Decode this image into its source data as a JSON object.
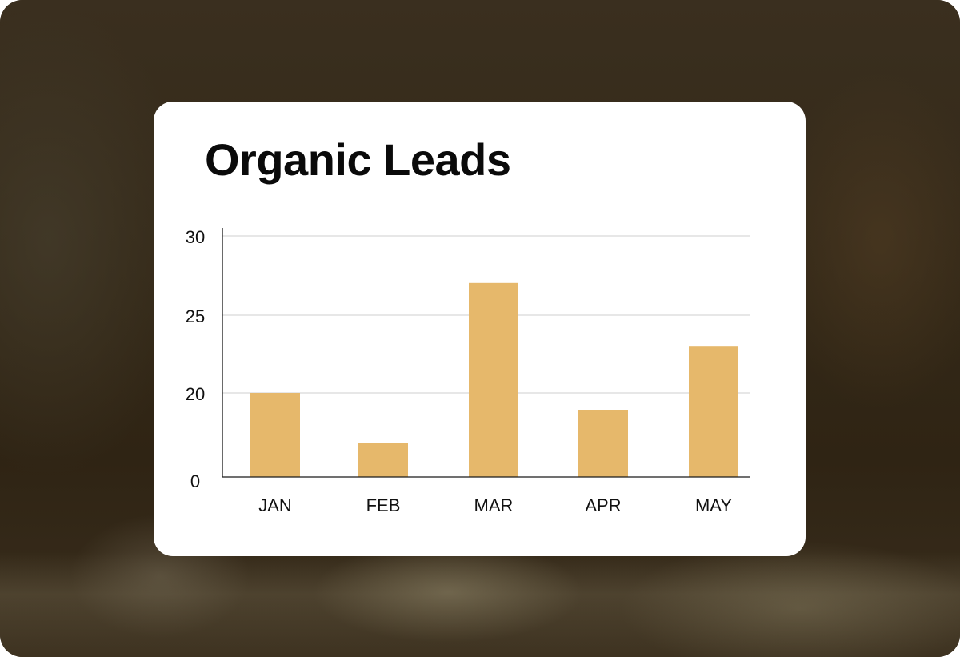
{
  "chart_data": {
    "type": "bar",
    "title": "Organic Leads",
    "categories": [
      "JAN",
      "FEB",
      "MAR",
      "APR",
      "MAY"
    ],
    "values": [
      20,
      17,
      27,
      19,
      23
    ],
    "yticks": [
      {
        "label": "0",
        "value": 0
      },
      {
        "label": "20",
        "value": 20
      },
      {
        "label": "25",
        "value": 25
      },
      {
        "label": "30",
        "value": 30
      }
    ],
    "ylim": [
      0,
      30
    ],
    "axis_break": true,
    "gridlines": true,
    "xlabel": "",
    "ylabel": "",
    "bar_color": "#e6b86b",
    "grid_color": "#cfcfcf",
    "axis_color": "#1a1a1a"
  }
}
